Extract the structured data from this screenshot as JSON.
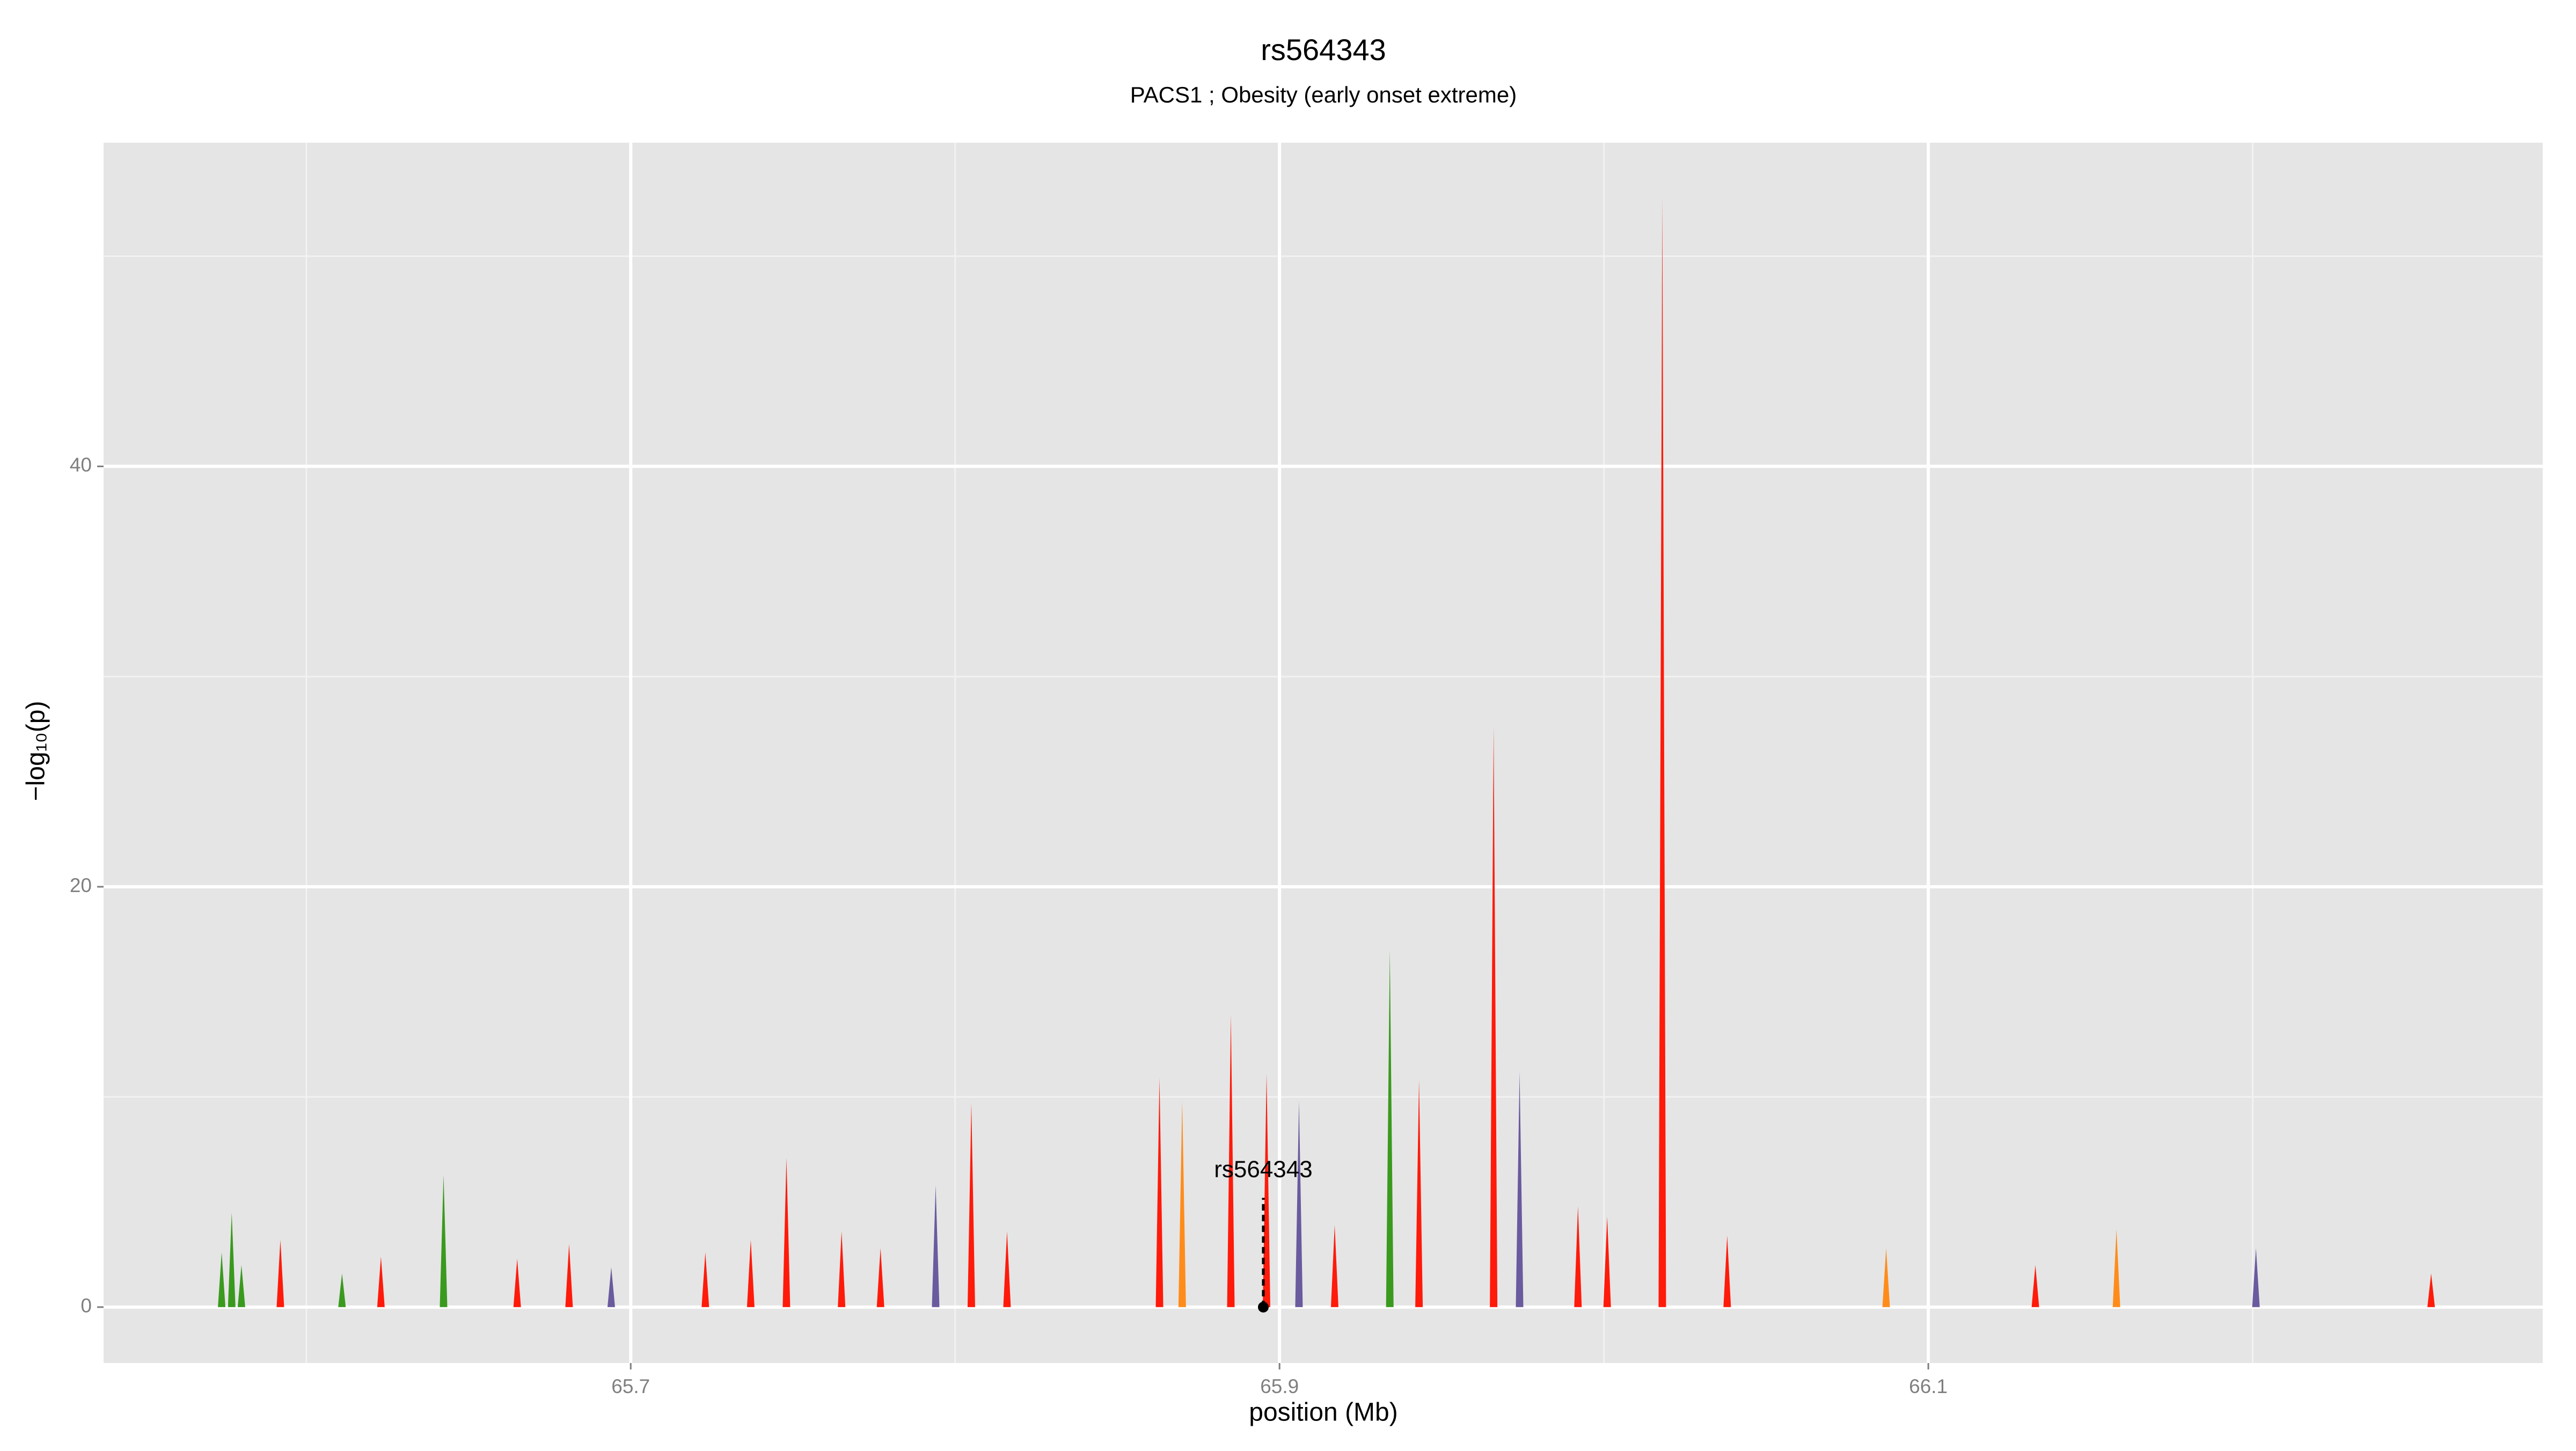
{
  "chart_data": {
    "type": "spike",
    "title": "rs564343",
    "subtitle": "PACS1 ; Obesity (early onset extreme)",
    "x_label": "position (Mb)",
    "y_label": "−log₁₀(p)",
    "xlim": [
      65.5375,
      66.2894
    ],
    "ylim": [
      -2.66,
      55.4
    ],
    "xticks": [
      65.7,
      65.9,
      66.1
    ],
    "yticks": [
      0,
      20,
      40
    ],
    "minor_xticks": [
      65.6,
      65.8,
      66.0,
      66.2
    ],
    "minor_yticks": [
      10,
      30,
      50
    ],
    "grid": true,
    "series": [
      {
        "color": "#ff1a0a",
        "x": [
          65.592,
          65.623,
          65.665,
          65.681,
          65.723,
          65.737,
          65.748,
          65.765,
          65.777,
          65.805,
          65.816,
          65.863,
          65.885,
          65.896,
          65.917,
          65.943,
          65.966,
          65.992,
          66.001,
          66.018,
          66.038,
          66.133,
          66.255
        ],
        "values": [
          3.2,
          2.4,
          2.3,
          3.0,
          2.6,
          3.2,
          7.1,
          3.6,
          2.8,
          9.7,
          3.6,
          10.9,
          13.9,
          11.1,
          3.9,
          10.8,
          27.6,
          4.8,
          4.3,
          52.8,
          3.4,
          2.0,
          1.6
        ]
      },
      {
        "color": "#ff8c1a",
        "x": [
          65.87,
          66.087,
          66.158
        ],
        "values": [
          9.8,
          2.8,
          3.7
        ]
      },
      {
        "color": "#3a9a1e",
        "x": [
          65.5739,
          65.577,
          65.58,
          65.611,
          65.6423,
          65.934
        ],
        "values": [
          2.6,
          4.5,
          2.0,
          1.6,
          6.3,
          17.0
        ]
      },
      {
        "color": "#6a5a9e",
        "x": [
          65.694,
          65.794,
          65.906,
          65.974,
          66.201
        ],
        "values": [
          1.9,
          5.8,
          9.8,
          11.2,
          2.8
        ]
      }
    ],
    "annotation": {
      "text": "rs564343",
      "x": 65.895,
      "y": 0,
      "y_top": 5.2
    }
  }
}
